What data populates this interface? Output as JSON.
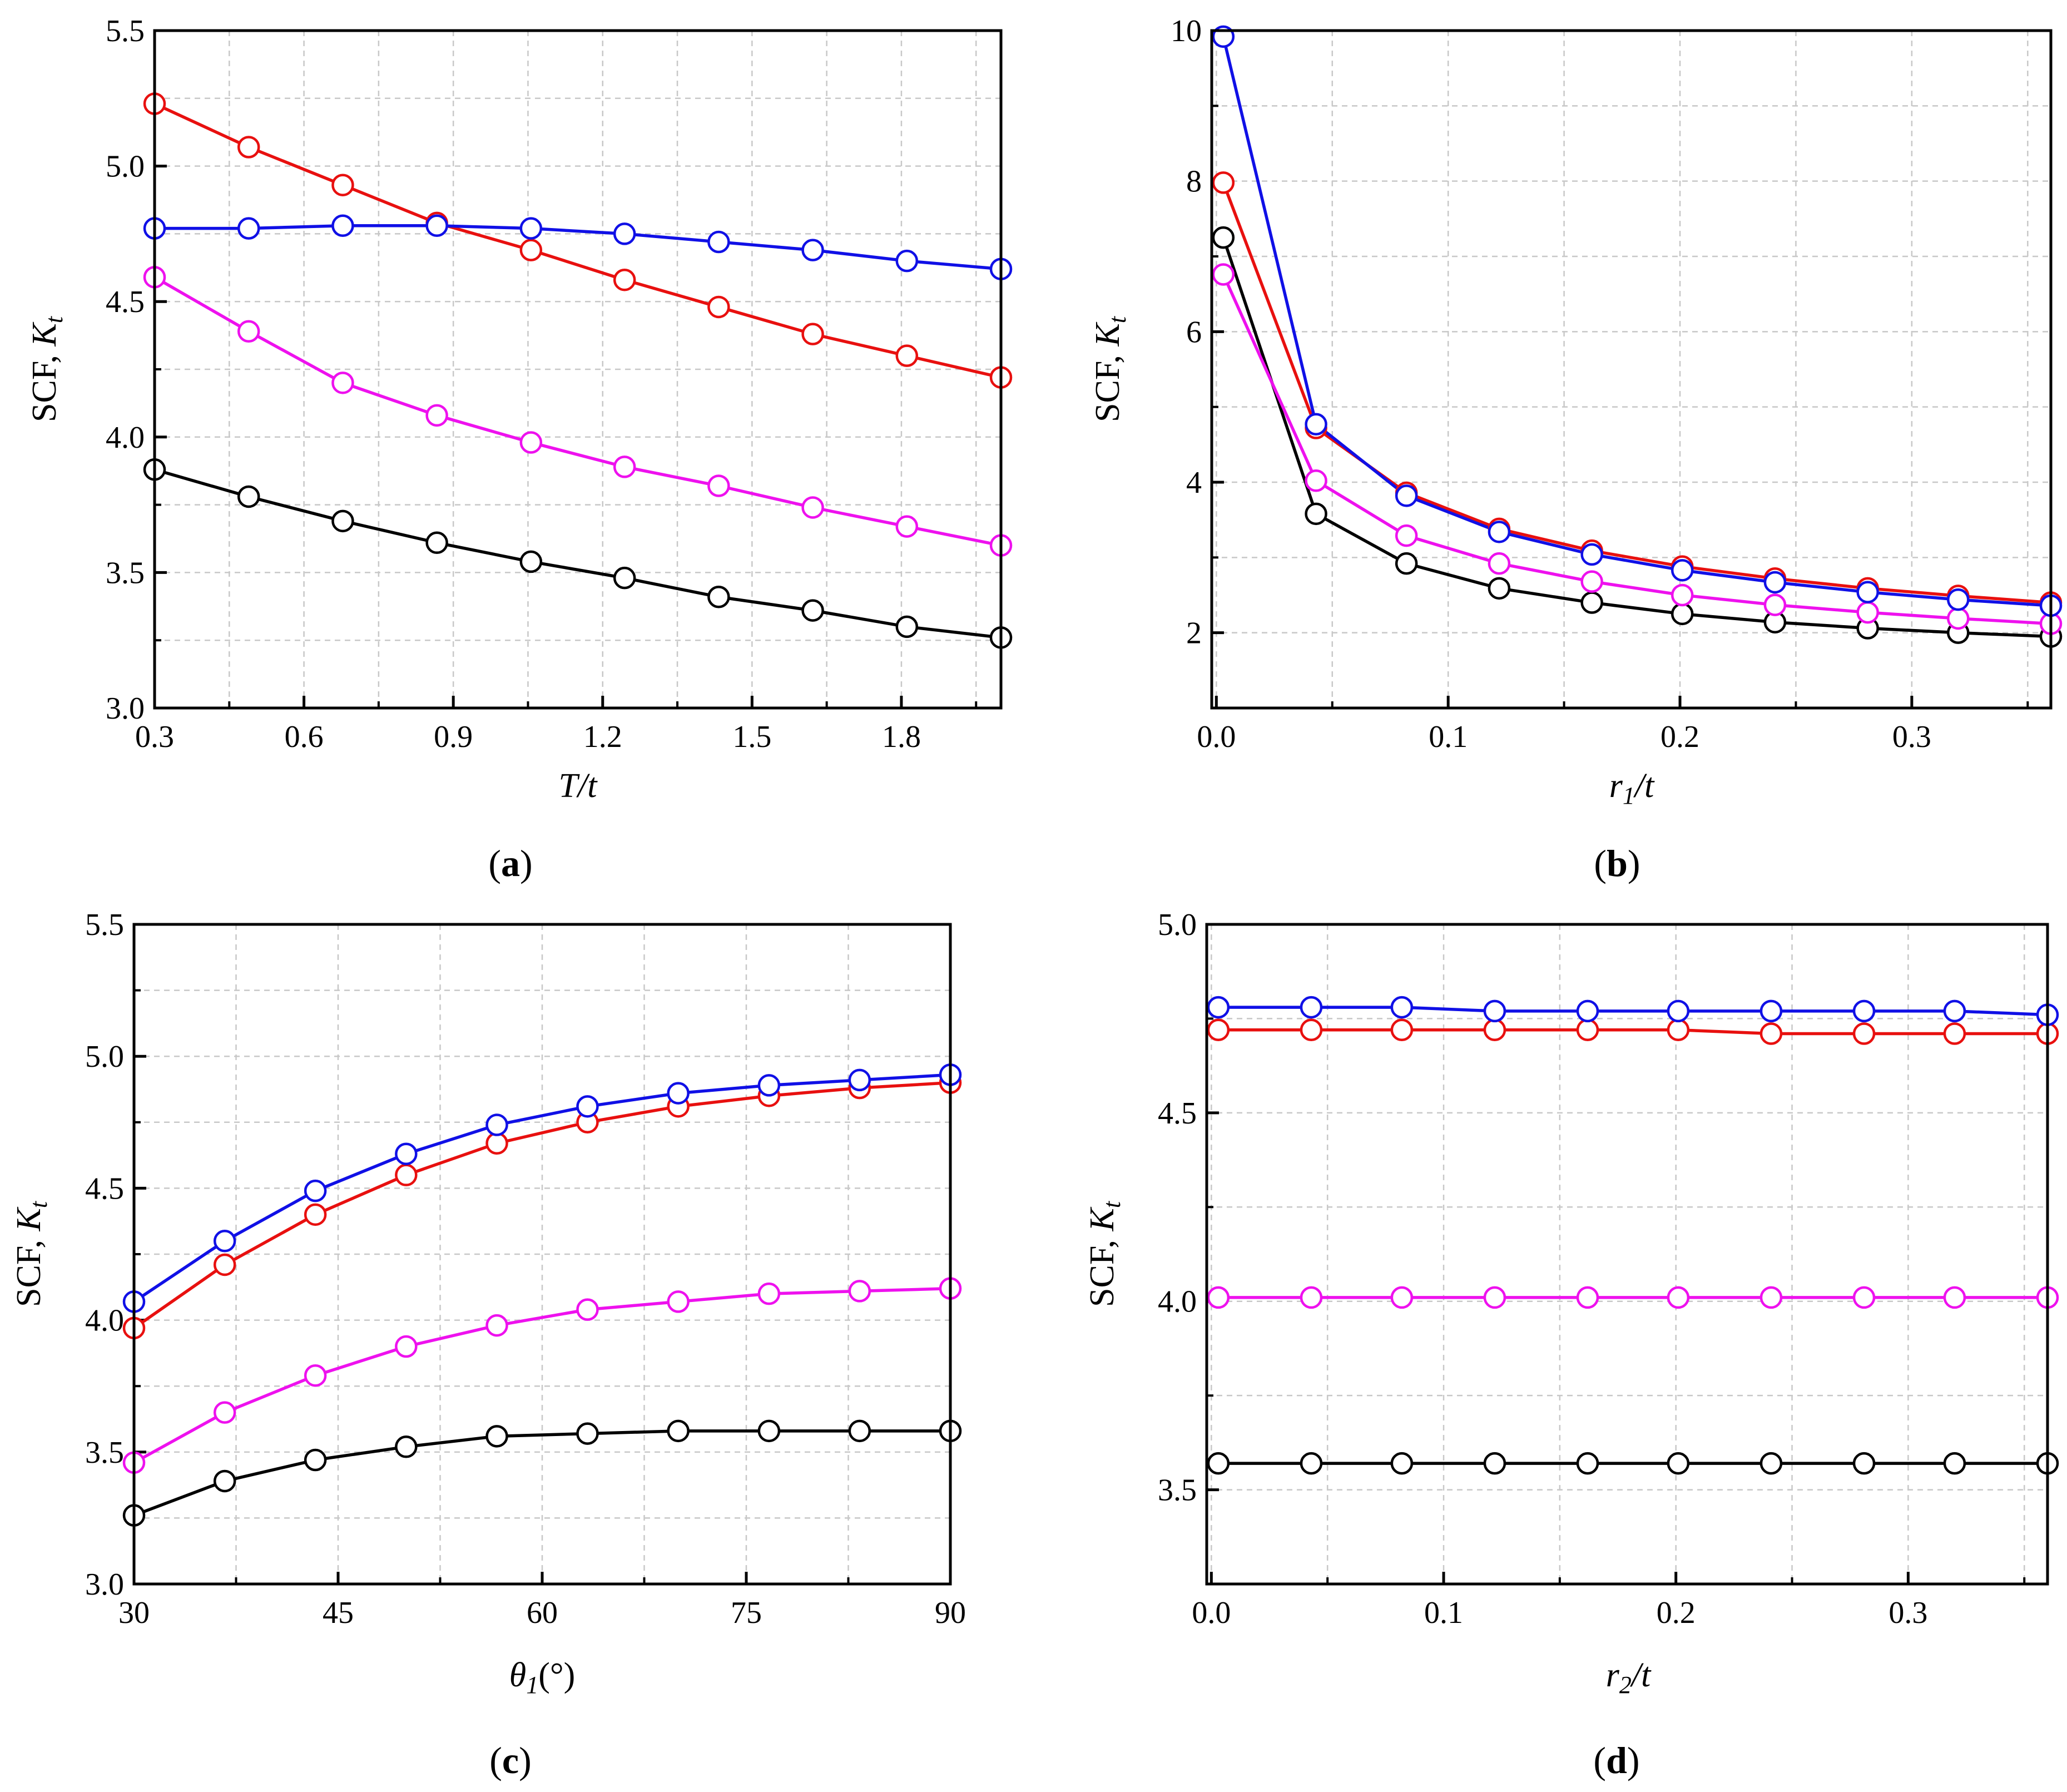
{
  "figure": {
    "panels": [
      {
        "id": "a",
        "caption_letter": "a",
        "xlabel_main": "T",
        "xlabel_sub": "",
        "xlabel_suffix": "/t",
        "ylabel_main": "SCF, ",
        "ylabel_var": "K",
        "ylabel_sub": "t"
      },
      {
        "id": "b",
        "caption_letter": "b",
        "xlabel_main": "r",
        "xlabel_sub": "1",
        "xlabel_suffix": "/t",
        "ylabel_main": "SCF, ",
        "ylabel_var": "K",
        "ylabel_sub": "t"
      },
      {
        "id": "c",
        "caption_letter": "c",
        "xlabel_main": "θ",
        "xlabel_sub": "1",
        "xlabel_suffix": "(°)",
        "ylabel_main": "SCF, ",
        "ylabel_var": "K",
        "ylabel_sub": "t"
      },
      {
        "id": "d",
        "caption_letter": "d",
        "xlabel_main": "r",
        "xlabel_sub": "2",
        "xlabel_suffix": "/t",
        "ylabel_main": "SCF, ",
        "ylabel_var": "K",
        "ylabel_sub": "t"
      }
    ]
  },
  "colors": {
    "red": "#e8100f",
    "blue": "#1010e6",
    "magenta": "#ee11ee",
    "black": "#000000",
    "grid": "#c8c8c8"
  },
  "chart_data": [
    {
      "id": "a",
      "type": "line",
      "title": "",
      "xlabel": "T/t",
      "ylabel": "SCF, Kt",
      "xlim": [
        0.3,
        2.0
      ],
      "ylim": [
        3.0,
        5.5
      ],
      "xticks": [
        0.3,
        0.6,
        0.9,
        1.2,
        1.5,
        1.8
      ],
      "xtick_labels": [
        "0.3",
        "0.6",
        "0.9",
        "1.2",
        "1.5",
        "1.8"
      ],
      "yticks": [
        3.0,
        3.5,
        4.0,
        4.5,
        5.0,
        5.5
      ],
      "ytick_labels": [
        "3.0",
        "3.5",
        "4.0",
        "4.5",
        "5.0",
        "5.5"
      ],
      "grid": true,
      "minor_x": [
        0.45,
        0.75,
        1.05,
        1.35,
        1.65,
        1.95
      ],
      "minor_y": [
        3.25,
        3.75,
        4.25,
        4.75,
        5.25
      ],
      "x": [
        0.3,
        0.489,
        0.678,
        0.867,
        1.056,
        1.244,
        1.433,
        1.622,
        1.811,
        2.0
      ],
      "series": [
        {
          "name": "red",
          "color": "red",
          "values": [
            5.23,
            5.07,
            4.93,
            4.79,
            4.69,
            4.58,
            4.48,
            4.38,
            4.3,
            4.22
          ]
        },
        {
          "name": "blue",
          "color": "blue",
          "values": [
            4.77,
            4.77,
            4.78,
            4.78,
            4.77,
            4.75,
            4.72,
            4.69,
            4.65,
            4.62
          ]
        },
        {
          "name": "magenta",
          "color": "magenta",
          "values": [
            4.59,
            4.39,
            4.2,
            4.08,
            3.98,
            3.89,
            3.82,
            3.74,
            3.67,
            3.6
          ]
        },
        {
          "name": "black",
          "color": "black",
          "values": [
            3.88,
            3.78,
            3.69,
            3.61,
            3.54,
            3.48,
            3.41,
            3.36,
            3.3,
            3.26
          ]
        }
      ]
    },
    {
      "id": "b",
      "type": "line",
      "title": "",
      "xlabel": "r1/t",
      "ylabel": "SCF, Kt",
      "xlim": [
        -0.002,
        0.36
      ],
      "ylim": [
        1.0,
        10.0
      ],
      "xticks": [
        0.0,
        0.1,
        0.2,
        0.3
      ],
      "xtick_labels": [
        "0.0",
        "0.1",
        "0.2",
        "0.3"
      ],
      "yticks": [
        2,
        4,
        6,
        8,
        10
      ],
      "ytick_labels": [
        "2",
        "4",
        "6",
        "8",
        "10"
      ],
      "grid": true,
      "minor_x": [
        0.05,
        0.15,
        0.25,
        0.35
      ],
      "minor_y": [
        3,
        5,
        7,
        9
      ],
      "x": [
        0.003,
        0.043,
        0.082,
        0.122,
        0.162,
        0.201,
        0.241,
        0.281,
        0.32,
        0.36
      ],
      "series": [
        {
          "name": "red",
          "color": "red",
          "values": [
            7.98,
            4.72,
            3.86,
            3.38,
            3.09,
            2.88,
            2.72,
            2.59,
            2.49,
            2.4
          ]
        },
        {
          "name": "blue",
          "color": "blue",
          "values": [
            9.92,
            4.77,
            3.82,
            3.34,
            3.04,
            2.83,
            2.67,
            2.54,
            2.44,
            2.36
          ]
        },
        {
          "name": "magenta",
          "color": "magenta",
          "values": [
            6.76,
            4.02,
            3.29,
            2.92,
            2.68,
            2.5,
            2.37,
            2.27,
            2.19,
            2.12
          ]
        },
        {
          "name": "black",
          "color": "black",
          "values": [
            7.25,
            3.58,
            2.92,
            2.59,
            2.4,
            2.25,
            2.14,
            2.06,
            2.0,
            1.95
          ]
        }
      ]
    },
    {
      "id": "c",
      "type": "line",
      "title": "",
      "xlabel": "θ1(°)",
      "ylabel": "SCF, Kt",
      "xlim": [
        30,
        90
      ],
      "ylim": [
        3.0,
        5.5
      ],
      "xticks": [
        30,
        45,
        60,
        75,
        90
      ],
      "xtick_labels": [
        "30",
        "45",
        "60",
        "75",
        "90"
      ],
      "yticks": [
        3.0,
        3.5,
        4.0,
        4.5,
        5.0,
        5.5
      ],
      "ytick_labels": [
        "3.0",
        "3.5",
        "4.0",
        "4.5",
        "5.0",
        "5.5"
      ],
      "grid": true,
      "minor_x": [
        37.5,
        52.5,
        67.5,
        82.5
      ],
      "minor_y": [
        3.25,
        3.75,
        4.25,
        4.75,
        5.25
      ],
      "x": [
        30,
        36.67,
        43.33,
        50,
        56.67,
        63.33,
        70,
        76.67,
        83.33,
        90
      ],
      "series": [
        {
          "name": "red",
          "color": "red",
          "values": [
            3.97,
            4.21,
            4.4,
            4.55,
            4.67,
            4.75,
            4.81,
            4.85,
            4.88,
            4.9
          ]
        },
        {
          "name": "blue",
          "color": "blue",
          "values": [
            4.07,
            4.3,
            4.49,
            4.63,
            4.74,
            4.81,
            4.86,
            4.89,
            4.91,
            4.93
          ]
        },
        {
          "name": "magenta",
          "color": "magenta",
          "values": [
            3.46,
            3.65,
            3.79,
            3.9,
            3.98,
            4.04,
            4.07,
            4.1,
            4.11,
            4.12
          ]
        },
        {
          "name": "black",
          "color": "black",
          "values": [
            3.26,
            3.39,
            3.47,
            3.52,
            3.56,
            3.57,
            3.58,
            3.58,
            3.58,
            3.58
          ]
        }
      ]
    },
    {
      "id": "d",
      "type": "line",
      "title": "",
      "xlabel": "r2/t",
      "ylabel": "SCF, Kt",
      "xlim": [
        -0.002,
        0.36
      ],
      "ylim": [
        3.25,
        5.0
      ],
      "xticks": [
        0.0,
        0.1,
        0.2,
        0.3
      ],
      "xtick_labels": [
        "0.0",
        "0.1",
        "0.2",
        "0.3"
      ],
      "yticks": [
        3.5,
        4.0,
        4.5,
        5.0
      ],
      "ytick_labels": [
        "3.5",
        "4.0",
        "4.5",
        "5.0"
      ],
      "grid": true,
      "minor_x": [
        0.05,
        0.15,
        0.25,
        0.35
      ],
      "minor_y": [
        3.75,
        4.25,
        4.75
      ],
      "x": [
        0.003,
        0.043,
        0.082,
        0.122,
        0.162,
        0.201,
        0.241,
        0.281,
        0.32,
        0.36
      ],
      "series": [
        {
          "name": "red",
          "color": "red",
          "values": [
            4.72,
            4.72,
            4.72,
            4.72,
            4.72,
            4.72,
            4.71,
            4.71,
            4.71,
            4.71
          ]
        },
        {
          "name": "blue",
          "color": "blue",
          "values": [
            4.78,
            4.78,
            4.78,
            4.77,
            4.77,
            4.77,
            4.77,
            4.77,
            4.77,
            4.76
          ]
        },
        {
          "name": "magenta",
          "color": "magenta",
          "values": [
            4.01,
            4.01,
            4.01,
            4.01,
            4.01,
            4.01,
            4.01,
            4.01,
            4.01,
            4.01
          ]
        },
        {
          "name": "black",
          "color": "black",
          "values": [
            3.57,
            3.57,
            3.57,
            3.57,
            3.57,
            3.57,
            3.57,
            3.57,
            3.57,
            3.57
          ]
        }
      ]
    }
  ]
}
